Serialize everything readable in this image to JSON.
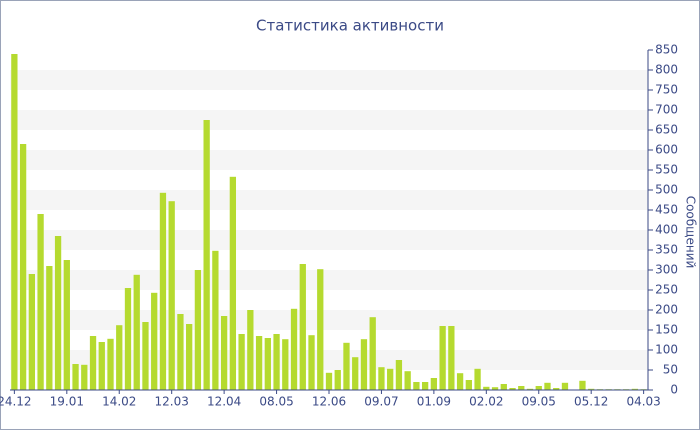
{
  "chart_data": {
    "type": "bar",
    "title": "Статистика активности",
    "y_label": "Сообщений",
    "categories": [
      "24.12",
      null,
      null,
      null,
      null,
      null,
      "19.01",
      null,
      null,
      null,
      null,
      null,
      "14.02",
      null,
      null,
      null,
      null,
      null,
      "12.03",
      null,
      null,
      null,
      null,
      null,
      "12.04",
      null,
      null,
      null,
      null,
      null,
      "08.05",
      null,
      null,
      null,
      null,
      null,
      "12.06",
      null,
      null,
      null,
      null,
      null,
      "09.07",
      null,
      null,
      null,
      null,
      null,
      "01.09",
      null,
      null,
      null,
      null,
      null,
      "02.02",
      null,
      null,
      null,
      null,
      null,
      "09.05",
      null,
      null,
      null,
      null,
      null,
      "05.12",
      null,
      null,
      null,
      null,
      null,
      "04.03"
    ],
    "values": [
      840,
      615,
      290,
      440,
      310,
      385,
      325,
      65,
      63,
      135,
      120,
      128,
      162,
      255,
      288,
      170,
      243,
      493,
      472,
      190,
      165,
      300,
      675,
      348,
      185,
      533,
      140,
      200,
      135,
      130,
      140,
      127,
      203,
      315,
      137,
      302,
      43,
      50,
      118,
      82,
      127,
      182,
      57,
      53,
      75,
      47,
      20,
      20,
      30,
      160,
      160,
      42,
      25,
      53,
      8,
      7,
      15,
      5,
      10,
      3,
      10,
      18,
      5,
      18,
      1,
      23,
      3,
      2,
      2,
      2,
      2,
      3,
      2
    ],
    "color": "#b5da2f",
    "ylim": [
      0,
      850
    ],
    "yticks": [
      0,
      50,
      100,
      150,
      200,
      250,
      300,
      350,
      400,
      450,
      500,
      550,
      600,
      650,
      700,
      750,
      800,
      850
    ],
    "y_axis_side": "right",
    "grid": true
  }
}
